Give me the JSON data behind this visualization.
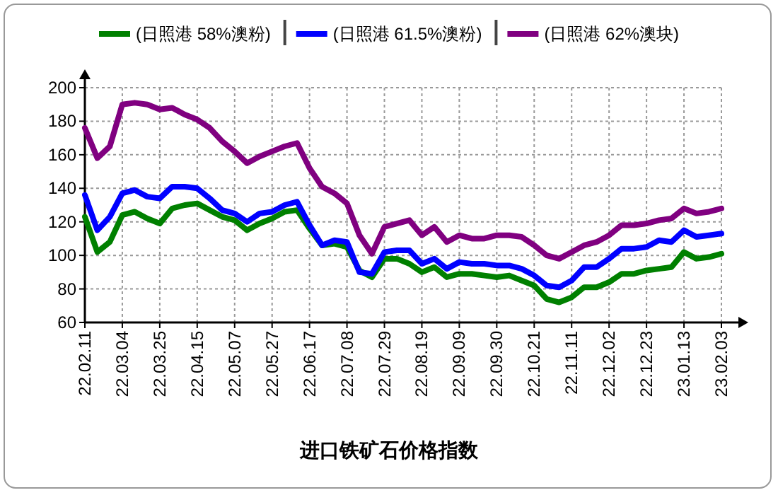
{
  "chart_data": {
    "type": "line",
    "title": "进口铁矿石价格指数",
    "categories": [
      "22.02.11",
      null,
      null,
      "22.03.04",
      null,
      null,
      "22.03.25",
      null,
      null,
      "22.04.15",
      null,
      null,
      "22.05.07",
      null,
      null,
      "22.05.27",
      null,
      null,
      "22.06.17",
      null,
      null,
      "22.07.08",
      null,
      null,
      "22.07.29",
      null,
      null,
      "22.08.19",
      null,
      null,
      "22.09.09",
      null,
      null,
      "22.09.30",
      null,
      null,
      "22.10.21",
      null,
      null,
      "22.11.11",
      null,
      null,
      "22.12.02",
      null,
      null,
      "22.12.23",
      null,
      null,
      "23.01.13",
      null,
      null,
      "23.02.03"
    ],
    "series": [
      {
        "name": "(日照港 58%澳粉)",
        "color": "#008000",
        "values": [
          123,
          102,
          108,
          124,
          126,
          122,
          119,
          128,
          130,
          131,
          127,
          123,
          121,
          115,
          119,
          122,
          126,
          127,
          116,
          106,
          107,
          105,
          91,
          87,
          98,
          98,
          95,
          90,
          93,
          87,
          89,
          89,
          88,
          87,
          88,
          85,
          82,
          74,
          72,
          75,
          81,
          81,
          84,
          89,
          89,
          91,
          92,
          93,
          102,
          98,
          99,
          101
        ]
      },
      {
        "name": "(日照港 61.5%澳粉)",
        "color": "#0000ff",
        "values": [
          136,
          115,
          123,
          137,
          139,
          135,
          134,
          141,
          141,
          140,
          134,
          127,
          125,
          120,
          125,
          126,
          130,
          132,
          118,
          106,
          109,
          108,
          90,
          89,
          102,
          103,
          103,
          95,
          98,
          92,
          96,
          95,
          95,
          94,
          94,
          92,
          88,
          82,
          81,
          85,
          93,
          93,
          98,
          104,
          104,
          105,
          109,
          108,
          115,
          111,
          112,
          113
        ]
      },
      {
        "name": "(日照港 62%澳块)",
        "color": "#800080",
        "values": [
          176,
          158,
          165,
          190,
          191,
          190,
          187,
          188,
          184,
          181,
          176,
          168,
          162,
          155,
          159,
          162,
          165,
          167,
          152,
          141,
          137,
          131,
          112,
          101,
          117,
          119,
          121,
          112,
          117,
          108,
          112,
          110,
          110,
          112,
          112,
          111,
          106,
          100,
          98,
          102,
          106,
          108,
          112,
          118,
          118,
          119,
          121,
          122,
          128,
          125,
          126,
          128
        ]
      }
    ],
    "ylim": [
      60,
      200
    ],
    "yticks": [
      60,
      80,
      100,
      120,
      140,
      160,
      180,
      200
    ],
    "grid": true,
    "legend": "top",
    "line_style": "solid",
    "marker": "none"
  }
}
